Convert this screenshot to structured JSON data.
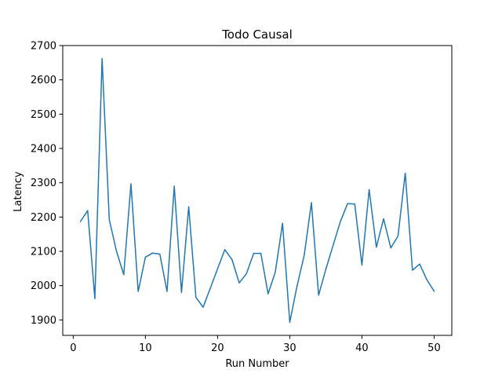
{
  "chart_data": {
    "type": "line",
    "title": "Todo Causal",
    "xlabel": "Run Number",
    "ylabel": "Latency",
    "xlim": [
      -1.45,
      52.45
    ],
    "ylim": [
      1855,
      2700
    ],
    "xticks": [
      0,
      10,
      20,
      30,
      40,
      50
    ],
    "yticks": [
      1900,
      2000,
      2100,
      2200,
      2300,
      2400,
      2500,
      2600,
      2700
    ],
    "grid": false,
    "series": [
      {
        "color": "#1f77b4",
        "x": [
          1,
          2,
          3,
          4,
          5,
          6,
          7,
          8,
          9,
          10,
          11,
          12,
          13,
          14,
          15,
          16,
          17,
          18,
          19,
          20,
          21,
          22,
          23,
          24,
          25,
          26,
          27,
          28,
          29,
          30,
          31,
          32,
          33,
          34,
          35,
          36,
          37,
          38,
          39,
          40,
          41,
          42,
          43,
          44,
          45,
          46,
          47,
          48,
          49,
          50
        ],
        "y": [
          2187,
          2219,
          1962,
          2662,
          2192,
          2100,
          2032,
          2297,
          1983,
          2083,
          2095,
          2092,
          1983,
          2290,
          1980,
          2230,
          1966,
          1937,
          1993,
          2049,
          2105,
          2076,
          2008,
          2035,
          2094,
          2094,
          1976,
          2040,
          2182,
          1893,
          1998,
          2088,
          2242,
          1972,
          2048,
          2117,
          2186,
          2239,
          2238,
          2060,
          2280,
          2112,
          2195,
          2110,
          2145,
          2328,
          2045,
          2063,
          2017,
          1984
        ]
      }
    ]
  }
}
